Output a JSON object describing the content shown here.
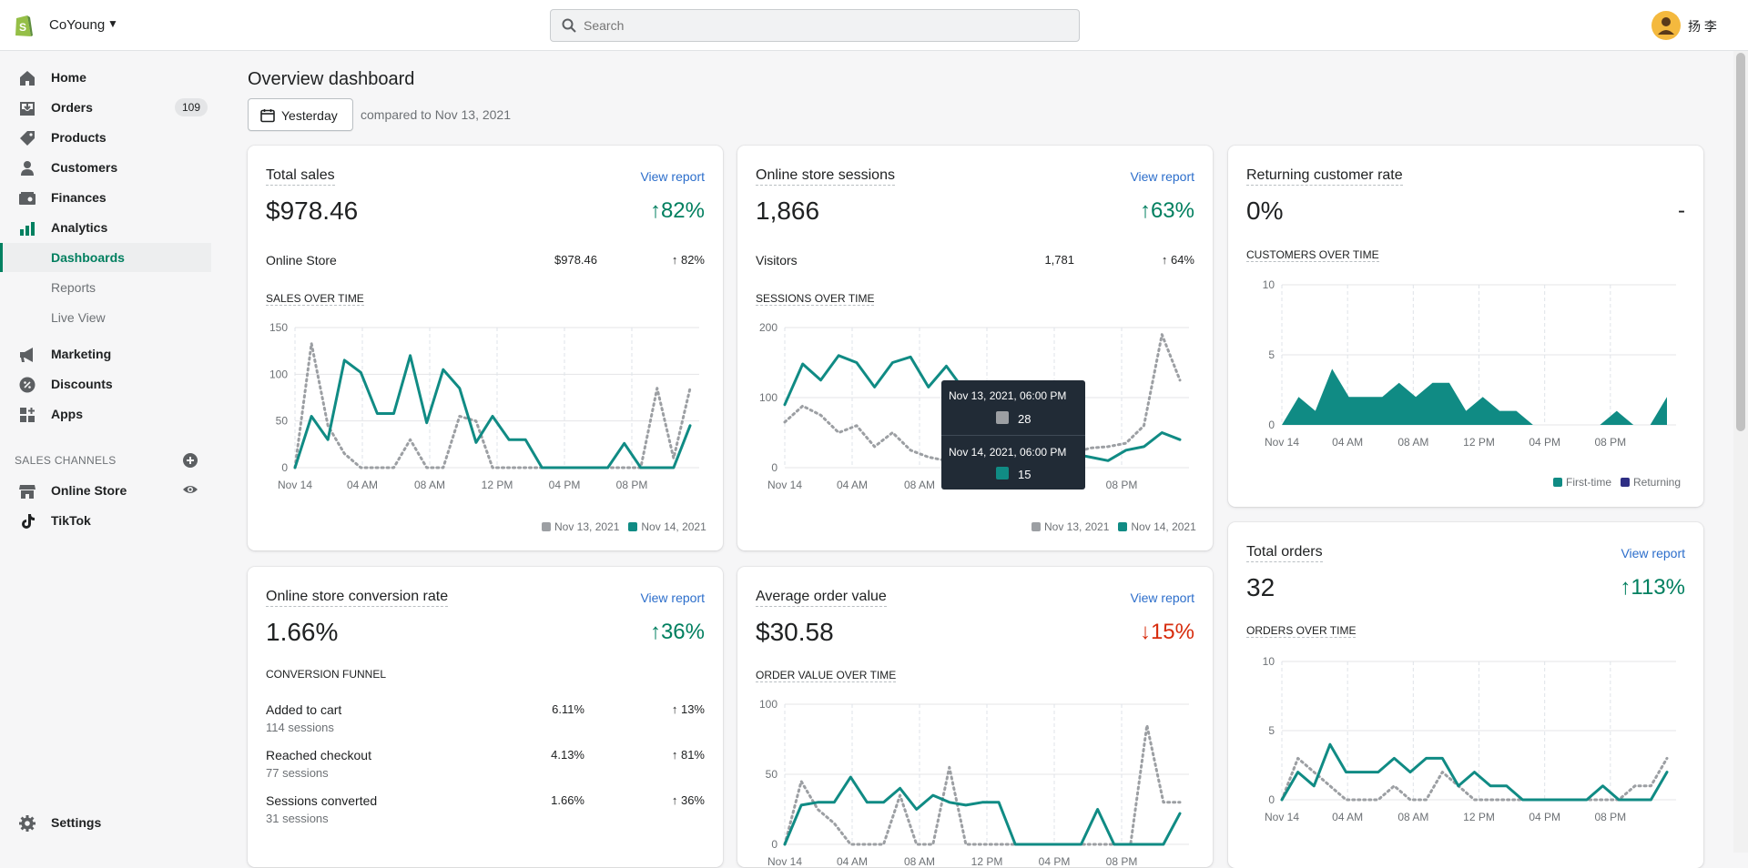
{
  "topbar": {
    "store_name": "CoYoung",
    "search_placeholder": "Search",
    "user_name": "扬 李"
  },
  "sidebar": {
    "items": [
      {
        "label": "Home"
      },
      {
        "label": "Orders",
        "badge": "109"
      },
      {
        "label": "Products"
      },
      {
        "label": "Customers"
      },
      {
        "label": "Finances"
      },
      {
        "label": "Analytics"
      }
    ],
    "analytics_sub": [
      {
        "label": "Dashboards",
        "active": true
      },
      {
        "label": "Reports"
      },
      {
        "label": "Live View"
      }
    ],
    "items2": [
      {
        "label": "Marketing"
      },
      {
        "label": "Discounts"
      },
      {
        "label": "Apps"
      }
    ],
    "sales_channels_heading": "SALES CHANNELS",
    "channels": [
      {
        "label": "Online Store"
      },
      {
        "label": "TikTok"
      }
    ],
    "settings_label": "Settings"
  },
  "page": {
    "title": "Overview dashboard",
    "date_button": "Yesterday",
    "compare_text": "compared to Nov 13, 2021"
  },
  "colors": {
    "current": "#108b84",
    "previous": "#9c9fa3",
    "positive": "#007f5f",
    "negative": "#d72c0d",
    "link": "#2c6ecb",
    "returning": "#2e2e84"
  },
  "legend": {
    "prev": "Nov 13, 2021",
    "curr": "Nov 14, 2021"
  },
  "time_ticks": [
    "Nov 14",
    "04 AM",
    "08 AM",
    "12 PM",
    "04 PM",
    "08 PM"
  ],
  "cards": {
    "total_sales": {
      "title": "Total sales",
      "view": "View report",
      "value": "$978.46",
      "change": "↑82%",
      "row_label": "Online Store",
      "row_value": "$978.46",
      "row_change": "↑ 82%",
      "chart_label": "SALES OVER TIME"
    },
    "sessions": {
      "title": "Online store sessions",
      "view": "View report",
      "value": "1,866",
      "change": "↑63%",
      "row_label": "Visitors",
      "row_value": "1,781",
      "row_change": "↑ 64%",
      "chart_label": "SESSIONS OVER TIME"
    },
    "returning": {
      "title": "Returning customer rate",
      "value": "0%",
      "change": "-",
      "chart_label": "CUSTOMERS OVER TIME",
      "legend_first": "First-time",
      "legend_returning": "Returning"
    },
    "conversion": {
      "title": "Online store conversion rate",
      "view": "View report",
      "value": "1.66%",
      "change": "↑36%",
      "funnel_label": "CONVERSION FUNNEL",
      "rows": [
        {
          "label": "Added to cart",
          "sub": "114 sessions",
          "value": "6.11%",
          "change": "↑ 13%"
        },
        {
          "label": "Reached checkout",
          "sub": "77 sessions",
          "value": "4.13%",
          "change": "↑ 81%"
        },
        {
          "label": "Sessions converted",
          "sub": "31 sessions",
          "value": "1.66%",
          "change": "↑ 36%"
        }
      ]
    },
    "aov": {
      "title": "Average order value",
      "view": "View report",
      "value": "$30.58",
      "change": "↓15%",
      "chart_label": "ORDER VALUE OVER TIME"
    },
    "orders": {
      "title": "Total orders",
      "view": "View report",
      "value": "32",
      "change": "↑113%",
      "chart_label": "ORDERS OVER TIME"
    }
  },
  "tooltip": {
    "prev_date": "Nov 13, 2021, 06:00 PM",
    "prev_value": "28",
    "curr_date": "Nov 14, 2021, 06:00 PM",
    "curr_value": "15"
  },
  "chart_data": [
    {
      "id": "sales",
      "type": "line",
      "title": "SALES OVER TIME",
      "ylim": [
        0,
        150
      ],
      "yticks": [
        "150",
        "100",
        "50",
        "0"
      ],
      "series": [
        {
          "name": "Nov 13, 2021",
          "values": [
            0,
            133,
            45,
            15,
            0,
            0,
            0,
            30,
            0,
            0,
            55,
            50,
            0,
            0,
            0,
            0,
            0,
            0,
            0,
            0,
            0,
            0,
            85,
            10,
            85
          ]
        },
        {
          "name": "Nov 14, 2021",
          "values": [
            0,
            55,
            30,
            115,
            102,
            58,
            58,
            120,
            48,
            105,
            85,
            27,
            55,
            30,
            30,
            0,
            0,
            0,
            0,
            0,
            26,
            0,
            0,
            0,
            45
          ]
        }
      ]
    },
    {
      "id": "sessions",
      "type": "line",
      "title": "SESSIONS OVER TIME",
      "ylim": [
        0,
        200
      ],
      "yticks": [
        "200",
        "100",
        "0"
      ],
      "series": [
        {
          "name": "Nov 13, 2021",
          "values": [
            65,
            88,
            75,
            50,
            60,
            30,
            50,
            25,
            15,
            10,
            12,
            8,
            10,
            12,
            15,
            10,
            20,
            28,
            30,
            35,
            60,
            190,
            125
          ]
        },
        {
          "name": "Nov 14, 2021",
          "values": [
            90,
            148,
            125,
            160,
            150,
            115,
            150,
            158,
            115,
            145,
            110,
            80,
            70,
            50,
            35,
            25,
            20,
            15,
            10,
            25,
            30,
            50,
            40
          ]
        }
      ]
    },
    {
      "id": "customers",
      "type": "area",
      "title": "CUSTOMERS OVER TIME",
      "ylim": [
        0,
        10
      ],
      "yticks": [
        "10",
        "5",
        "0"
      ],
      "series": [
        {
          "name": "First-time",
          "values": [
            0,
            2,
            1,
            4,
            2,
            2,
            2,
            3,
            2,
            3,
            3,
            1,
            2,
            1,
            1,
            0,
            0,
            0,
            0,
            0,
            1,
            0,
            0,
            2
          ]
        },
        {
          "name": "Returning",
          "values": [
            0,
            0,
            0,
            0,
            0,
            0,
            0,
            0,
            0,
            0,
            0,
            0,
            0,
            0,
            0,
            0,
            0,
            0,
            0,
            0,
            0,
            0,
            0,
            0
          ]
        }
      ]
    },
    {
      "id": "aov",
      "type": "line",
      "title": "ORDER VALUE OVER TIME",
      "ylim": [
        0,
        100
      ],
      "yticks": [
        "100",
        "50",
        "0"
      ],
      "series": [
        {
          "name": "Nov 13, 2021",
          "values": [
            0,
            45,
            25,
            15,
            0,
            0,
            0,
            35,
            0,
            0,
            55,
            0,
            0,
            0,
            0,
            0,
            0,
            0,
            0,
            0,
            0,
            0,
            85,
            30,
            30
          ]
        },
        {
          "name": "Nov 14, 2021",
          "values": [
            0,
            28,
            30,
            30,
            48,
            30,
            30,
            40,
            25,
            35,
            30,
            28,
            30,
            30,
            0,
            0,
            0,
            0,
            0,
            25,
            0,
            0,
            0,
            0,
            22
          ]
        }
      ]
    },
    {
      "id": "orders",
      "type": "line",
      "title": "ORDERS OVER TIME",
      "ylim": [
        0,
        10
      ],
      "yticks": [
        "10",
        "5",
        "0"
      ],
      "series": [
        {
          "name": "Nov 13, 2021",
          "values": [
            0,
            3,
            2,
            1,
            0,
            0,
            0,
            1,
            0,
            0,
            2,
            1,
            0,
            0,
            0,
            0,
            0,
            0,
            0,
            0,
            0,
            0,
            1,
            1,
            3
          ]
        },
        {
          "name": "Nov 14, 2021",
          "values": [
            0,
            2,
            1,
            4,
            2,
            2,
            2,
            3,
            2,
            3,
            3,
            1,
            2,
            1,
            1,
            0,
            0,
            0,
            0,
            0,
            1,
            0,
            0,
            0,
            2
          ]
        }
      ]
    }
  ]
}
